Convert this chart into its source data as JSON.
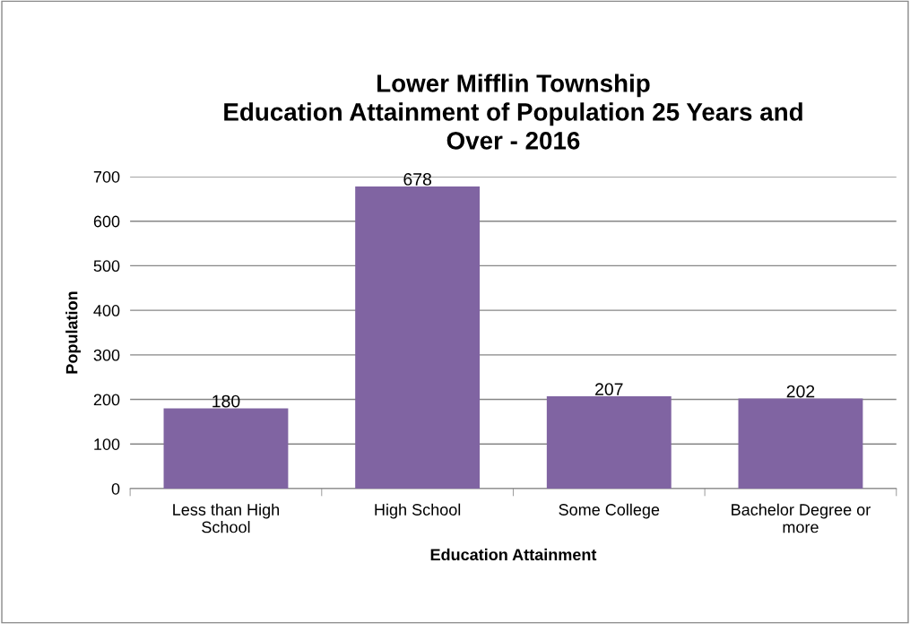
{
  "chart_data": {
    "type": "bar",
    "title": "Lower Mifflin Township\nEducation Attainment of Population 25 Years and\nOver - 2016",
    "xlabel": "Education Attainment",
    "ylabel": "Population",
    "categories": [
      "Less than High\nSchool",
      "High School",
      "Some College",
      "Bachelor Degree or\nmore"
    ],
    "values": [
      180,
      678,
      207,
      202
    ],
    "color": "#8064a2",
    "ylim": [
      0,
      700
    ],
    "yticks": [
      0,
      100,
      200,
      300,
      400,
      500,
      600,
      700
    ],
    "grid": "y",
    "data_labels": true
  }
}
